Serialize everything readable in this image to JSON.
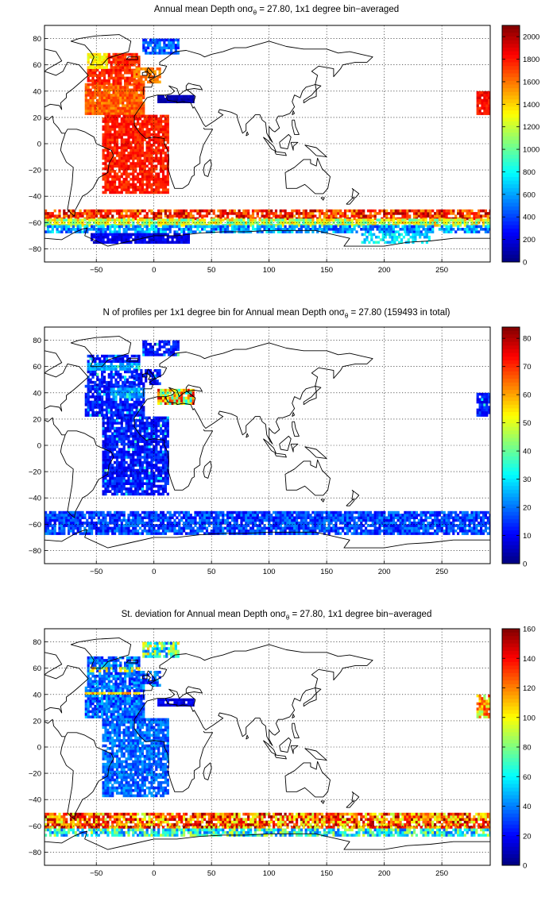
{
  "colormap": "jet",
  "panels": [
    {
      "title_pre": "Annual mean Depth on",
      "title_sigma": "σ",
      "title_sub": "θ",
      "title_post": " = 27.80, 1x1 degree bin−averaged",
      "x_ticks": [
        "−50",
        "0",
        "50",
        "100",
        "150",
        "200",
        "250"
      ],
      "y_ticks": [
        "80",
        "60",
        "40",
        "20",
        "0",
        "−20",
        "−40",
        "−60",
        "−80"
      ],
      "colorbar_ticks": [
        "2000",
        "1800",
        "1600",
        "1400",
        "1200",
        "1000",
        "800",
        "600",
        "400",
        "200",
        "0"
      ],
      "colorbar_range": [
        0,
        2100
      ]
    },
    {
      "title_pre": "N of profiles per 1x1 degree bin for Annual mean Depth on",
      "title_sigma": "σ",
      "title_sub": "θ",
      "title_post": " = 27.80 (159493 in total)",
      "x_ticks": [
        "−50",
        "0",
        "50",
        "100",
        "150",
        "200",
        "250"
      ],
      "y_ticks": [
        "80",
        "60",
        "40",
        "20",
        "0",
        "−20",
        "−40",
        "−60",
        "−80"
      ],
      "colorbar_ticks": [
        "80",
        "70",
        "60",
        "50",
        "40",
        "30",
        "20",
        "10",
        "0"
      ],
      "colorbar_range": [
        0,
        84
      ]
    },
    {
      "title_pre": "St. deviation for Annual mean Depth on",
      "title_sigma": "σ",
      "title_sub": "θ",
      "title_post": " = 27.80, 1x1 degree bin−averaged",
      "x_ticks": [
        "−50",
        "0",
        "50",
        "100",
        "150",
        "200",
        "250"
      ],
      "y_ticks": [
        "80",
        "60",
        "40",
        "20",
        "0",
        "−20",
        "−40",
        "−60",
        "−80"
      ],
      "colorbar_ticks": [
        "160",
        "140",
        "120",
        "100",
        "80",
        "60",
        "40",
        "20",
        "0"
      ],
      "colorbar_range": [
        0,
        160
      ]
    }
  ]
}
